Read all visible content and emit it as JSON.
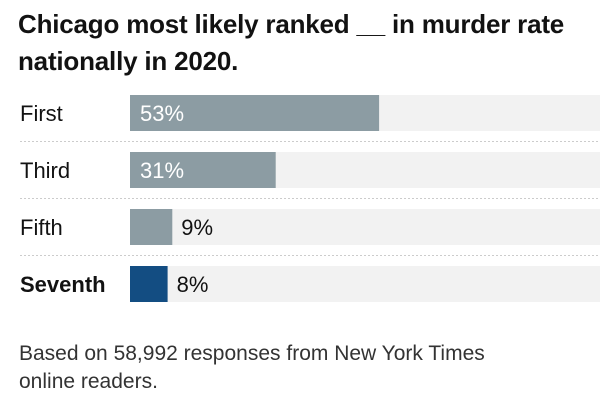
{
  "title_lines": [
    "Chicago most likely ranked __ in murder rate",
    "nationally in 2020."
  ],
  "footnote_lines": [
    "Based on 58,992 responses from New York Times",
    "online readers."
  ],
  "colors": {
    "bar_default": "#8c9ca3",
    "bar_highlight": "#134d82",
    "track": "#f2f2f2",
    "divider": "#cccccc",
    "text": "#121212",
    "label_inside": "#ffffff"
  },
  "chart_data": {
    "type": "bar",
    "orientation": "horizontal",
    "categories": [
      "First",
      "Third",
      "Fifth",
      "Seventh"
    ],
    "values": [
      53,
      31,
      9,
      8
    ],
    "value_labels": [
      "53%",
      "31%",
      "9%",
      "8%"
    ],
    "highlight_category": "Seventh",
    "xlim": [
      0,
      100
    ]
  }
}
